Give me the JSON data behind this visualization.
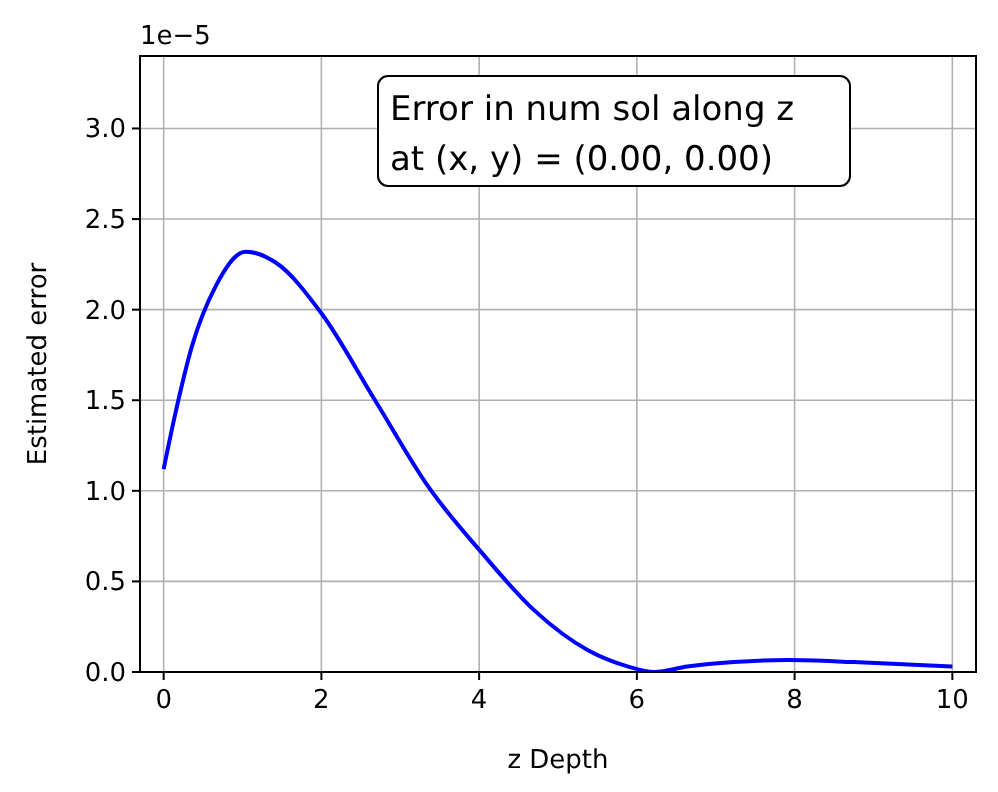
{
  "chart_data": {
    "type": "line",
    "xlabel": "z Depth",
    "ylabel": "Estimated error",
    "annotations": [
      "1e−5",
      "Error in num sol along z\nat (x, y) = (0.00, 0.00)"
    ],
    "x": [
      0,
      0.15,
      0.36,
      0.66,
      1.04,
      1.42,
      2.0,
      2.68,
      3.36,
      4.03,
      4.7,
      5.38,
      5.89,
      6.22,
      6.64,
      7.23,
      7.91,
      8.75,
      10
    ],
    "series": [
      {
        "color": "#0000ff",
        "values": [
          1.12,
          1.43,
          1.8,
          2.13,
          2.32,
          2.26,
          1.98,
          1.5,
          1.02,
          0.66,
          0.34,
          0.12,
          0.03,
          0.0,
          0.03,
          0.055,
          0.066,
          0.055,
          0.03
        ]
      }
    ],
    "xlim": [
      -0.3,
      10.3
    ],
    "ylim": [
      0,
      3.4
    ],
    "xticks": [
      0,
      2,
      4,
      6,
      8,
      10
    ],
    "yticks": [
      {
        "value": 0,
        "label": "0.0"
      },
      {
        "value": 0.5,
        "label": "0.5"
      },
      {
        "value": 1,
        "label": "1.0"
      },
      {
        "value": 1.5,
        "label": "1.5"
      },
      {
        "value": 2,
        "label": "2.0"
      },
      {
        "value": 2.5,
        "label": "2.5"
      },
      {
        "value": 3,
        "label": "3.0"
      }
    ],
    "grid": true,
    "line_style": "solid",
    "marker": "none"
  }
}
